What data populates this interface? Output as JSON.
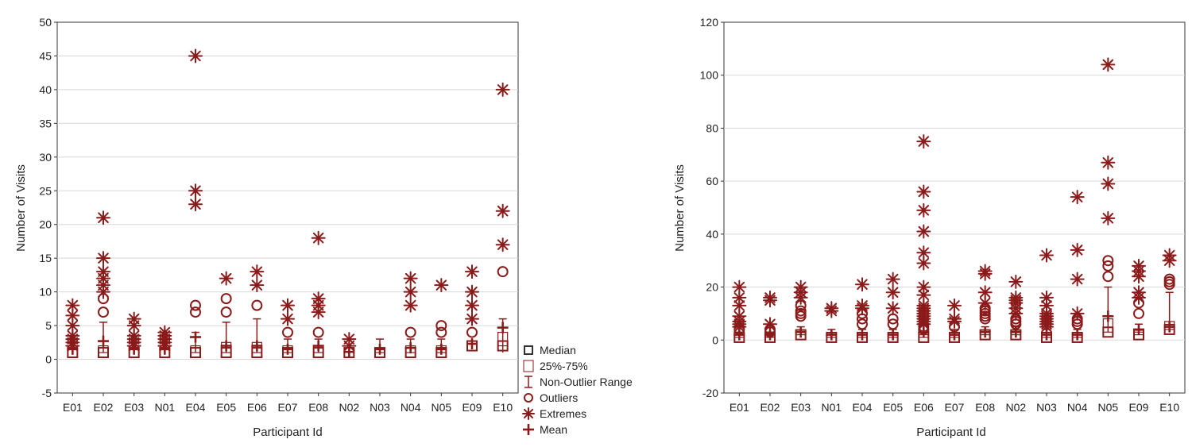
{
  "colors": {
    "mark": "#8b1a1a",
    "grid": "#d8d8d8",
    "axis": "#333333"
  },
  "legend": {
    "items": [
      {
        "label": "Median",
        "symbol": "square"
      },
      {
        "label": "25%-75%",
        "symbol": "box"
      },
      {
        "label": "Non-Outlier Range",
        "symbol": "whisker"
      },
      {
        "label": "Outliers",
        "symbol": "circle"
      },
      {
        "label": "Extremes",
        "symbol": "asterisk"
      },
      {
        "label": "Mean",
        "symbol": "plus"
      }
    ]
  },
  "chart_data": [
    {
      "type": "box",
      "title": "",
      "xlabel": "Participant Id",
      "ylabel": "Number of Visits",
      "ylim": [
        -5,
        50
      ],
      "yticks": [
        -5,
        0,
        5,
        10,
        15,
        20,
        25,
        30,
        35,
        40,
        45,
        50
      ],
      "grid": true,
      "categories": [
        "E01",
        "E02",
        "E03",
        "N01",
        "E04",
        "E05",
        "E06",
        "E07",
        "E08",
        "N02",
        "N03",
        "N04",
        "N05",
        "E09",
        "E10"
      ],
      "series": [
        {
          "name": "E01",
          "median": 1,
          "q1": 1,
          "q3": 1,
          "whisker_low": 1,
          "whisker_high": 1,
          "mean": 1.5,
          "outliers": [],
          "extremes": [
            2,
            2.5,
            3,
            3.5,
            5,
            6.5,
            8
          ]
        },
        {
          "name": "E02",
          "median": 1,
          "q1": 1,
          "q3": 2,
          "whisker_low": 1,
          "whisker_high": 5.5,
          "mean": 2.7,
          "outliers": [
            7,
            9
          ],
          "extremes": [
            10,
            11,
            12,
            13,
            15,
            21
          ]
        },
        {
          "name": "E03",
          "median": 1,
          "q1": 1,
          "q3": 1,
          "whisker_low": 1,
          "whisker_high": 1,
          "mean": 1.5,
          "outliers": [],
          "extremes": [
            2,
            2.5,
            3,
            3.5,
            5,
            6
          ]
        },
        {
          "name": "N01",
          "median": 1,
          "q1": 1,
          "q3": 1,
          "whisker_low": 1,
          "whisker_high": 1,
          "mean": 1.5,
          "outliers": [],
          "extremes": [
            2,
            2.5,
            3,
            3.5,
            4
          ]
        },
        {
          "name": "E04",
          "median": 1,
          "q1": 1,
          "q3": 2,
          "whisker_low": 1,
          "whisker_high": 4,
          "mean": 3.3,
          "outliers": [
            7,
            8
          ],
          "extremes": [
            23,
            25,
            45
          ]
        },
        {
          "name": "E05",
          "median": 1,
          "q1": 1,
          "q3": 2.5,
          "whisker_low": 1,
          "whisker_high": 5.5,
          "mean": 2,
          "outliers": [
            7,
            9
          ],
          "extremes": [
            12
          ]
        },
        {
          "name": "E06",
          "median": 1,
          "q1": 1,
          "q3": 2.5,
          "whisker_low": 1,
          "whisker_high": 6,
          "mean": 2,
          "outliers": [
            8
          ],
          "extremes": [
            11,
            13
          ]
        },
        {
          "name": "E07",
          "median": 1,
          "q1": 1,
          "q3": 2,
          "whisker_low": 1,
          "whisker_high": 3,
          "mean": 1.5,
          "outliers": [
            4
          ],
          "extremes": [
            6,
            8
          ]
        },
        {
          "name": "E08",
          "median": 1,
          "q1": 1,
          "q3": 2,
          "whisker_low": 1,
          "whisker_high": 3,
          "mean": 2,
          "outliers": [
            4
          ],
          "extremes": [
            7,
            8,
            9,
            18
          ]
        },
        {
          "name": "N02",
          "median": 1,
          "q1": 1,
          "q3": 1,
          "whisker_low": 1,
          "whisker_high": 1,
          "mean": 1.1,
          "outliers": [],
          "extremes": [
            2,
            3
          ]
        },
        {
          "name": "N03",
          "median": 1,
          "q1": 1,
          "q3": 1.5,
          "whisker_low": 1,
          "whisker_high": 3,
          "mean": 1.5,
          "outliers": [],
          "extremes": []
        },
        {
          "name": "N04",
          "median": 1,
          "q1": 1,
          "q3": 2,
          "whisker_low": 1,
          "whisker_high": 3,
          "mean": 1.7,
          "outliers": [
            4
          ],
          "extremes": [
            8,
            10,
            12
          ]
        },
        {
          "name": "N05",
          "median": 1,
          "q1": 1,
          "q3": 2,
          "whisker_low": 1,
          "whisker_high": 3,
          "mean": 1.5,
          "outliers": [
            4,
            5
          ],
          "extremes": [
            11
          ]
        },
        {
          "name": "E09",
          "median": 2,
          "q1": 2,
          "q3": 2,
          "whisker_low": 2,
          "whisker_high": 2,
          "mean": 2.3,
          "outliers": [
            4
          ],
          "extremes": [
            6,
            8,
            10,
            13
          ]
        },
        {
          "name": "E10",
          "median": 2,
          "q1": 2,
          "q3": 4,
          "whisker_low": 1,
          "whisker_high": 6,
          "mean": 4.7,
          "outliers": [
            13
          ],
          "extremes": [
            17,
            22,
            40
          ]
        }
      ]
    },
    {
      "type": "box",
      "title": "",
      "xlabel": "Participant Id",
      "ylabel": "Number of Visits",
      "ylim": [
        -20,
        120
      ],
      "yticks": [
        -20,
        0,
        20,
        40,
        60,
        80,
        100,
        120
      ],
      "grid": true,
      "categories": [
        "E01",
        "E02",
        "E03",
        "N01",
        "E04",
        "E05",
        "E06",
        "E07",
        "E08",
        "N02",
        "N03",
        "N04",
        "N05",
        "E09",
        "E10"
      ],
      "series": [
        {
          "name": "E01",
          "median": 1,
          "q1": 1,
          "q3": 2,
          "whisker_low": 1,
          "whisker_high": 3,
          "mean": 2,
          "outliers": [
            4
          ],
          "extremes": [
            5,
            6,
            7,
            9,
            13,
            16,
            20
          ]
        },
        {
          "name": "E02",
          "median": 1,
          "q1": 1,
          "q3": 2,
          "whisker_low": 1,
          "whisker_high": 3,
          "mean": 2,
          "outliers": [
            3,
            4
          ],
          "extremes": [
            6,
            15,
            16
          ]
        },
        {
          "name": "E03",
          "median": 2,
          "q1": 2,
          "q3": 3,
          "whisker_low": 2,
          "whisker_high": 5,
          "mean": 3,
          "outliers": [
            9,
            10,
            11,
            13
          ],
          "extremes": [
            16,
            18,
            20
          ]
        },
        {
          "name": "N01",
          "median": 1,
          "q1": 1,
          "q3": 2,
          "whisker_low": 1,
          "whisker_high": 4,
          "mean": 2,
          "outliers": [],
          "extremes": [
            11,
            12
          ]
        },
        {
          "name": "E04",
          "median": 1,
          "q1": 1,
          "q3": 2,
          "whisker_low": 1,
          "whisker_high": 4,
          "mean": 2,
          "outliers": [
            6,
            8,
            10
          ],
          "extremes": [
            12,
            13,
            21
          ]
        },
        {
          "name": "E05",
          "median": 1,
          "q1": 1,
          "q3": 2,
          "whisker_low": 1,
          "whisker_high": 4,
          "mean": 2,
          "outliers": [
            6,
            8
          ],
          "extremes": [
            12,
            18,
            23
          ]
        },
        {
          "name": "E06",
          "median": 1,
          "q1": 1,
          "q3": 2,
          "whisker_low": 1,
          "whisker_high": 3,
          "mean": 3,
          "outliers": [
            4,
            5
          ],
          "extremes": [
            6,
            7,
            8,
            9,
            10,
            11,
            12,
            13,
            17,
            20,
            29,
            33,
            41,
            49,
            56,
            75
          ]
        },
        {
          "name": "E07",
          "median": 1,
          "q1": 1,
          "q3": 2,
          "whisker_low": 1,
          "whisker_high": 4,
          "mean": 2,
          "outliers": [
            5
          ],
          "extremes": [
            7,
            8,
            13
          ]
        },
        {
          "name": "E08",
          "median": 2,
          "q1": 2,
          "q3": 3,
          "whisker_low": 2,
          "whisker_high": 5,
          "mean": 3,
          "outliers": [
            8,
            9,
            10,
            11,
            12
          ],
          "extremes": [
            14,
            18,
            25,
            26
          ]
        },
        {
          "name": "N02",
          "median": 2,
          "q1": 2,
          "q3": 3,
          "whisker_low": 2,
          "whisker_high": 5,
          "mean": 3,
          "outliers": [
            6,
            7,
            8
          ],
          "extremes": [
            10,
            12,
            14,
            15,
            16,
            22
          ]
        },
        {
          "name": "N03",
          "median": 1,
          "q1": 1,
          "q3": 2,
          "whisker_low": 1,
          "whisker_high": 4,
          "mean": 2,
          "outliers": [],
          "extremes": [
            5,
            6,
            7,
            8,
            9,
            10,
            13,
            16,
            32
          ]
        },
        {
          "name": "N04",
          "median": 1,
          "q1": 1,
          "q3": 2,
          "whisker_low": 1,
          "whisker_high": 4,
          "mean": 2,
          "outliers": [
            6,
            7,
            8
          ],
          "extremes": [
            10,
            23,
            34,
            54
          ]
        },
        {
          "name": "N05",
          "median": 3,
          "q1": 3,
          "q3": 8,
          "whisker_low": 3,
          "whisker_high": 20,
          "mean": 9,
          "outliers": [
            24,
            28,
            30
          ],
          "extremes": [
            46,
            59,
            67,
            104
          ]
        },
        {
          "name": "E09",
          "median": 2,
          "q1": 2,
          "q3": 3,
          "whisker_low": 2,
          "whisker_high": 6,
          "mean": 4,
          "outliers": [
            10,
            14
          ],
          "extremes": [
            16,
            18,
            24,
            26,
            28
          ]
        },
        {
          "name": "E10",
          "median": 4,
          "q1": 4,
          "q3": 7,
          "whisker_low": 4,
          "whisker_high": 18,
          "mean": 5,
          "outliers": [
            21,
            22,
            23
          ],
          "extremes": [
            30,
            32
          ]
        }
      ]
    }
  ]
}
